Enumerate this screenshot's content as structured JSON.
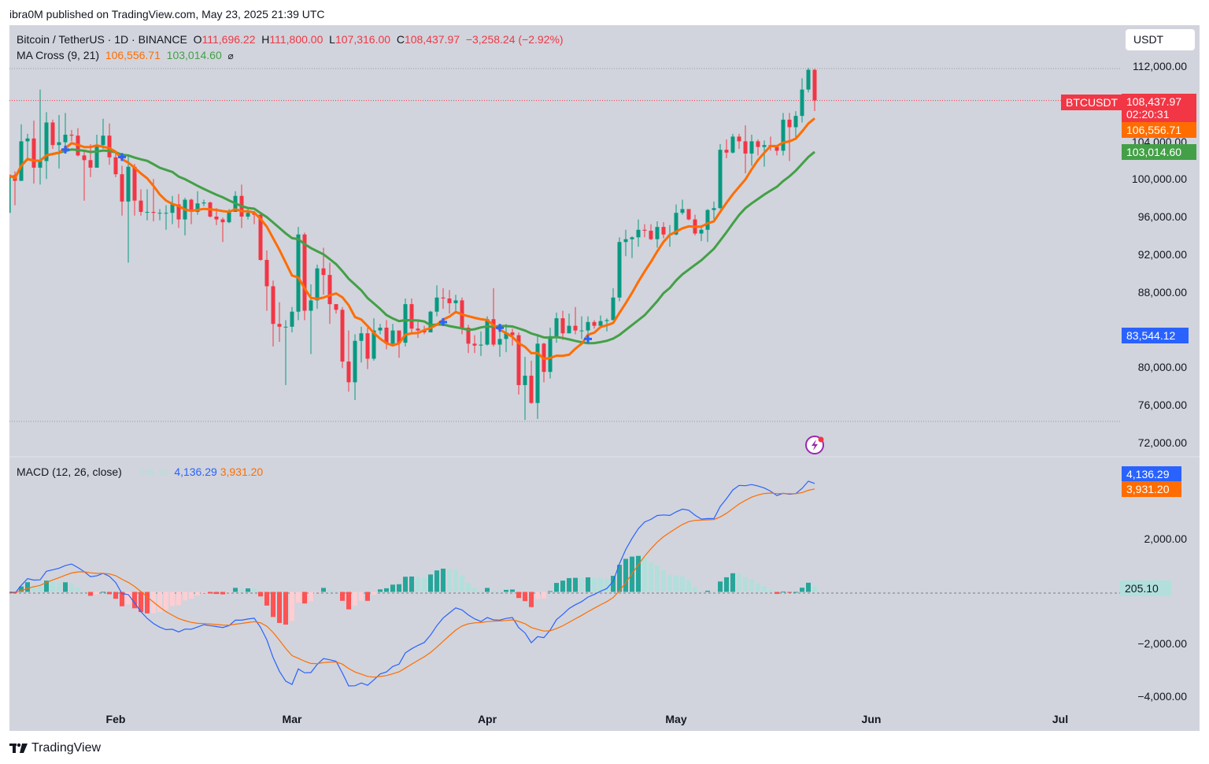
{
  "publish_line": "ibra0M published on TradingView.com, May 23, 2025 21:39 UTC",
  "footer_brand": "TradingView",
  "header": {
    "symbol": "Bitcoin / TetherUS · 1D · BINANCE",
    "open_label": "O",
    "open": "111,696.22",
    "high_label": "H",
    "high": "111,800.00",
    "low_label": "L",
    "low": "107,316.00",
    "close_label": "C",
    "close": "108,437.97",
    "change": "−3,258.24 (−2.92%)",
    "ma_name": "MA Cross (9, 21)",
    "ma_fast": "106,556.71",
    "ma_slow": "103,014.60",
    "ma_icon": "hidden-eye-icon"
  },
  "macd_legend": {
    "name": "MACD (12, 26, close)",
    "hist": "205.10",
    "macd": "4,136.29",
    "signal": "3,931.20"
  },
  "currency_button": "USDT",
  "price_tags": {
    "symbol_tag": "BTCUSDT",
    "last_price": "108,437.97",
    "countdown": "02:20:31",
    "ma_fast": "106,556.71",
    "ma_slow": "103,014.60",
    "marker_price": "83,544.12",
    "macd": "4,136.29",
    "signal": "3,931.20",
    "hist": "205.10"
  },
  "colors": {
    "up": "#089981",
    "down": "#f23645",
    "ma_fast": "#ff6d00",
    "ma_slow": "#43a047",
    "macd": "#2962ff",
    "signal": "#ff6d00",
    "hist_up_strong": "#26a69a",
    "hist_up_weak": "#b2dfdb",
    "hist_down_strong": "#ff5252",
    "hist_down_weak": "#ffcdd2",
    "cross_marker": "#2962ff",
    "background": "#d1d4dc"
  },
  "chart_data": [
    {
      "type": "candlestick",
      "title": "Bitcoin / TetherUS · 1D · BINANCE",
      "ylim": [
        70000,
        114000
      ],
      "y_scale": "linear",
      "y_ticks": [
        {
          "value": 112000,
          "label": "112,000.00"
        },
        {
          "value": 104000,
          "label": "104,000.00"
        },
        {
          "value": 100000,
          "label": "100,000.00"
        },
        {
          "value": 96000,
          "label": "96,000.00"
        },
        {
          "value": 92000,
          "label": "92,000.00"
        },
        {
          "value": 88000,
          "label": "88,000.00"
        },
        {
          "value": 80000,
          "label": "80,000.00"
        },
        {
          "value": 76000,
          "label": "76,000.00"
        },
        {
          "value": 72000,
          "label": "72,000.00"
        }
      ],
      "x_ticks": [
        {
          "date": "2025-02-01",
          "label": "Feb"
        },
        {
          "date": "2025-03-01",
          "label": "Mar"
        },
        {
          "date": "2025-04-01",
          "label": "Apr"
        },
        {
          "date": "2025-05-01",
          "label": "May"
        },
        {
          "date": "2025-06-01",
          "label": "Jun"
        },
        {
          "date": "2025-07-01",
          "label": "Jul"
        }
      ],
      "x_range": [
        "2025-01-15",
        "2025-07-13"
      ],
      "grid": false,
      "indicators": [
        {
          "name": "MA 9",
          "type": "SMA",
          "period": 9
        },
        {
          "name": "MA 21",
          "type": "SMA",
          "period": 21
        }
      ],
      "candles": [
        [
          "2025-01-15",
          96500,
          100700,
          96500,
          100500
        ],
        [
          "2025-01-16",
          100500,
          100900,
          97300,
          99900
        ],
        [
          "2025-01-17",
          99900,
          105900,
          99900,
          104100
        ],
        [
          "2025-01-18",
          104100,
          104900,
          102300,
          104400
        ],
        [
          "2025-01-19",
          104400,
          106300,
          99600,
          101300
        ],
        [
          "2025-01-20",
          101300,
          109600,
          99500,
          102000
        ],
        [
          "2025-01-21",
          102000,
          107200,
          100100,
          106100
        ],
        [
          "2025-01-22",
          106100,
          106400,
          103300,
          103700
        ],
        [
          "2025-01-23",
          103700,
          106900,
          101200,
          104000
        ],
        [
          "2025-01-24",
          104000,
          107100,
          102800,
          104800
        ],
        [
          "2025-01-25",
          104800,
          105300,
          104100,
          104700
        ],
        [
          "2025-01-26",
          104700,
          105500,
          102500,
          102600
        ],
        [
          "2025-01-27",
          102600,
          103200,
          97800,
          102100
        ],
        [
          "2025-01-28",
          102100,
          103800,
          100300,
          101300
        ],
        [
          "2025-01-29",
          101300,
          104800,
          101300,
          103700
        ],
        [
          "2025-01-30",
          103700,
          106500,
          103300,
          104700
        ],
        [
          "2025-01-31",
          104700,
          106000,
          101600,
          102400
        ],
        [
          "2025-02-01",
          102400,
          102800,
          100300,
          100600
        ],
        [
          "2025-02-02",
          100600,
          101500,
          96200,
          97700
        ],
        [
          "2025-02-03",
          97700,
          102500,
          91200,
          101400
        ],
        [
          "2025-02-04",
          101400,
          101700,
          96200,
          97800
        ],
        [
          "2025-02-05",
          97800,
          99000,
          96200,
          96600
        ],
        [
          "2025-02-06",
          96600,
          99000,
          95700,
          96600
        ],
        [
          "2025-02-07",
          96600,
          100100,
          95600,
          96500
        ],
        [
          "2025-02-08",
          96500,
          96900,
          95700,
          96500
        ],
        [
          "2025-02-09",
          96500,
          97300,
          94700,
          96500
        ],
        [
          "2025-02-10",
          96500,
          98300,
          95300,
          97400
        ],
        [
          "2025-02-11",
          97400,
          98500,
          94900,
          95800
        ],
        [
          "2025-02-12",
          95800,
          98100,
          94100,
          97900
        ],
        [
          "2025-02-13",
          97900,
          98000,
          95300,
          96600
        ],
        [
          "2025-02-14",
          96600,
          98800,
          96300,
          97500
        ],
        [
          "2025-02-15",
          97500,
          97900,
          97200,
          97600
        ],
        [
          "2025-02-16",
          97600,
          97700,
          96000,
          96100
        ],
        [
          "2025-02-17",
          96100,
          97000,
          95200,
          95800
        ],
        [
          "2025-02-18",
          95800,
          96000,
          93400,
          95500
        ],
        [
          "2025-02-19",
          95500,
          96900,
          95400,
          96600
        ],
        [
          "2025-02-20",
          96600,
          98800,
          96600,
          98300
        ],
        [
          "2025-02-21",
          98300,
          99500,
          94900,
          96100
        ],
        [
          "2025-02-22",
          96100,
          96900,
          95800,
          96500
        ],
        [
          "2025-02-23",
          96500,
          96700,
          95300,
          96300
        ],
        [
          "2025-02-24",
          96300,
          96500,
          91400,
          91500
        ],
        [
          "2025-02-25",
          91500,
          92500,
          86100,
          88700
        ],
        [
          "2025-02-26",
          88700,
          89300,
          82300,
          84700
        ],
        [
          "2025-02-27",
          84700,
          87000,
          82800,
          84400
        ],
        [
          "2025-02-28",
          84400,
          85100,
          78200,
          84400
        ],
        [
          "2025-03-01",
          84400,
          86500,
          83800,
          86000
        ],
        [
          "2025-03-02",
          86000,
          95000,
          85100,
          94200
        ],
        [
          "2025-03-03",
          94200,
          94400,
          85100,
          86100
        ],
        [
          "2025-03-04",
          86100,
          88900,
          81500,
          87200
        ],
        [
          "2025-03-05",
          87200,
          91000,
          86300,
          90600
        ],
        [
          "2025-03-06",
          90600,
          92800,
          87800,
          89900
        ],
        [
          "2025-03-07",
          89900,
          91200,
          84700,
          86800
        ],
        [
          "2025-03-08",
          86800,
          86800,
          85800,
          86200
        ],
        [
          "2025-03-09",
          86200,
          86500,
          80000,
          80700
        ],
        [
          "2025-03-10",
          80700,
          84000,
          77500,
          78500
        ],
        [
          "2025-03-11",
          78500,
          83600,
          76600,
          82900
        ],
        [
          "2025-03-12",
          82900,
          84400,
          80600,
          83700
        ],
        [
          "2025-03-13",
          83700,
          84300,
          79900,
          81000
        ],
        [
          "2025-03-14",
          81000,
          85300,
          80800,
          84000
        ],
        [
          "2025-03-15",
          84000,
          84700,
          83600,
          84300
        ],
        [
          "2025-03-16",
          84300,
          85100,
          82000,
          82600
        ],
        [
          "2025-03-17",
          82600,
          84700,
          82500,
          84000
        ],
        [
          "2025-03-18",
          84000,
          84000,
          81100,
          82700
        ],
        [
          "2025-03-19",
          82700,
          87400,
          82300,
          86800
        ],
        [
          "2025-03-20",
          86800,
          87400,
          83600,
          84200
        ],
        [
          "2025-03-21",
          84200,
          85000,
          83200,
          84000
        ],
        [
          "2025-03-22",
          84000,
          84500,
          83600,
          83800
        ],
        [
          "2025-03-23",
          83800,
          86100,
          83800,
          86000
        ],
        [
          "2025-03-24",
          86000,
          88800,
          85500,
          87500
        ],
        [
          "2025-03-25",
          87500,
          88500,
          86300,
          87400
        ],
        [
          "2025-03-26",
          87400,
          88300,
          85800,
          86900
        ],
        [
          "2025-03-27",
          86900,
          87800,
          85800,
          87200
        ],
        [
          "2025-03-28",
          87200,
          87500,
          83600,
          84300
        ],
        [
          "2025-03-29",
          84300,
          84600,
          81600,
          82600
        ],
        [
          "2025-03-30",
          82600,
          83500,
          81600,
          82400
        ],
        [
          "2025-03-31",
          82400,
          83900,
          81300,
          82500
        ],
        [
          "2025-04-01",
          82500,
          85500,
          82400,
          85200
        ],
        [
          "2025-04-02",
          85200,
          88500,
          82300,
          82500
        ],
        [
          "2025-04-03",
          82500,
          83900,
          81200,
          83100
        ],
        [
          "2025-04-04",
          83100,
          84700,
          81700,
          83800
        ],
        [
          "2025-04-05",
          83800,
          84200,
          82400,
          83500
        ],
        [
          "2025-04-06",
          83500,
          83800,
          77200,
          78200
        ],
        [
          "2025-04-07",
          78200,
          81200,
          74500,
          79200
        ],
        [
          "2025-04-08",
          79200,
          80800,
          76200,
          76300
        ],
        [
          "2025-04-09",
          76300,
          83500,
          74600,
          82600
        ],
        [
          "2025-04-10",
          82600,
          82700,
          78500,
          79600
        ],
        [
          "2025-04-11",
          79600,
          84300,
          78900,
          83400
        ],
        [
          "2025-04-12",
          83400,
          85900,
          82700,
          85300
        ],
        [
          "2025-04-13",
          85300,
          86100,
          83000,
          83700
        ],
        [
          "2025-04-14",
          83700,
          85800,
          83700,
          84500
        ],
        [
          "2025-04-15",
          84500,
          86500,
          83600,
          84000
        ],
        [
          "2025-04-16",
          84000,
          85500,
          83100,
          84000
        ],
        [
          "2025-04-17",
          84000,
          85500,
          83700,
          84900
        ],
        [
          "2025-04-18",
          84900,
          85100,
          84200,
          84500
        ],
        [
          "2025-04-19",
          84500,
          85600,
          84300,
          85000
        ],
        [
          "2025-04-20",
          85000,
          85300,
          83900,
          85100
        ],
        [
          "2025-04-21",
          85100,
          88500,
          85100,
          87500
        ],
        [
          "2025-04-22",
          87500,
          93900,
          87100,
          93400
        ],
        [
          "2025-04-23",
          93400,
          94700,
          91900,
          93700
        ],
        [
          "2025-04-24",
          93700,
          94000,
          91700,
          93900
        ],
        [
          "2025-04-25",
          93900,
          95800,
          92900,
          94700
        ],
        [
          "2025-04-26",
          94700,
          95300,
          93900,
          94600
        ],
        [
          "2025-04-27",
          94600,
          95300,
          93600,
          93700
        ],
        [
          "2025-04-28",
          93700,
          95600,
          92800,
          95000
        ],
        [
          "2025-04-29",
          95000,
          95500,
          93800,
          94200
        ],
        [
          "2025-04-30",
          94200,
          95200,
          92900,
          94200
        ],
        [
          "2025-05-01",
          94200,
          97400,
          94100,
          96500
        ],
        [
          "2025-05-02",
          96500,
          97900,
          96300,
          96900
        ],
        [
          "2025-05-03",
          96900,
          96900,
          95700,
          95800
        ],
        [
          "2025-05-04",
          95800,
          96300,
          94100,
          94300
        ],
        [
          "2025-05-05",
          94300,
          95200,
          93500,
          94700
        ],
        [
          "2025-05-06",
          94700,
          96900,
          93400,
          96800
        ],
        [
          "2025-05-07",
          96800,
          97700,
          95800,
          97000
        ],
        [
          "2025-05-08",
          97000,
          103800,
          96900,
          103200
        ],
        [
          "2025-05-09",
          103200,
          104300,
          102300,
          102900
        ],
        [
          "2025-05-10",
          102900,
          104900,
          102800,
          104600
        ],
        [
          "2025-05-11",
          104600,
          104900,
          103300,
          104100
        ],
        [
          "2025-05-12",
          104100,
          105800,
          100700,
          102800
        ],
        [
          "2025-05-13",
          102800,
          104800,
          101500,
          104100
        ],
        [
          "2025-05-14",
          104100,
          104300,
          102600,
          103500
        ],
        [
          "2025-05-15",
          103500,
          104200,
          101400,
          103700
        ],
        [
          "2025-05-16",
          103700,
          104600,
          103100,
          103500
        ],
        [
          "2025-05-17",
          103500,
          103700,
          102600,
          103100
        ],
        [
          "2025-05-18",
          103100,
          107100,
          102600,
          106400
        ],
        [
          "2025-05-19",
          106400,
          107100,
          102000,
          105600
        ],
        [
          "2025-05-20",
          105600,
          107300,
          104300,
          106800
        ],
        [
          "2025-05-21",
          106800,
          110800,
          106100,
          109600
        ],
        [
          "2025-05-22",
          109600,
          111900,
          109300,
          111700
        ],
        [
          "2025-05-23",
          111696.22,
          111800,
          107316,
          108437.97
        ]
      ],
      "last_price": 108437.97,
      "marker_price": 83544.12
    },
    {
      "type": "line",
      "title": "MACD (12, 26, close)",
      "series": [
        {
          "name": "MACD"
        },
        {
          "name": "Signal"
        },
        {
          "name": "Histogram"
        }
      ],
      "ylim": [
        -4600,
        5000
      ],
      "y_ticks": [
        {
          "value": 2000,
          "label": "2,000.00"
        },
        {
          "value": -2000,
          "label": "−2,000.00"
        },
        {
          "value": -4000,
          "label": "−4,000.00"
        }
      ],
      "last_values": {
        "macd": 4136.29,
        "signal": 3931.2,
        "hist": 205.1
      }
    }
  ]
}
